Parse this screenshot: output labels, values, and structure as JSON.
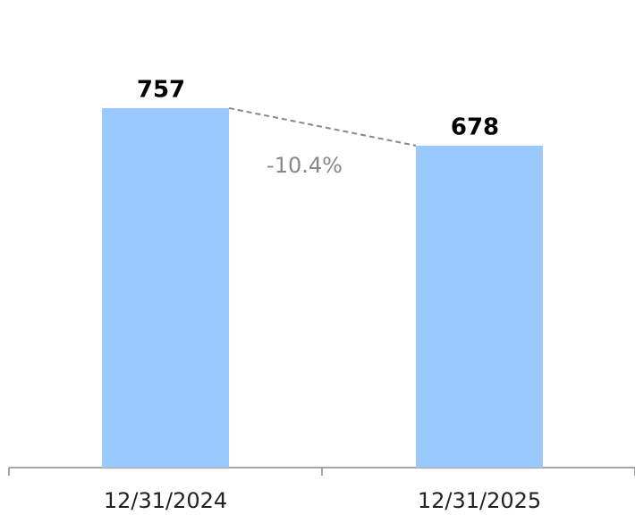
{
  "chart_data": {
    "type": "bar",
    "categories": [
      "12/31/2024",
      "12/31/2025"
    ],
    "values": [
      757,
      678
    ],
    "color": "#99c9ff",
    "ylim": [
      0,
      900
    ],
    "annotation": "-10.4%"
  }
}
